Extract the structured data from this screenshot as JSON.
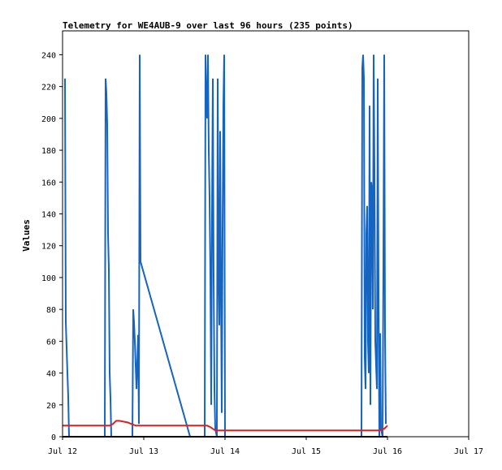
{
  "chart_data": {
    "type": "line",
    "title": "Telemetry for WE4AUB-9 over last 96 hours (235 points)",
    "xlabel": "",
    "ylabel": "Values",
    "x_ticks": [
      {
        "label": "Jul 12",
        "value": 0
      },
      {
        "label": "Jul 13",
        "value": 1
      },
      {
        "label": "Jul 14",
        "value": 2
      },
      {
        "label": "Jul 15",
        "value": 3
      },
      {
        "label": "Jul 16",
        "value": 4
      },
      {
        "label": "Jul 17",
        "value": 5
      }
    ],
    "xlim": [
      0,
      5
    ],
    "ylim": [
      0,
      255
    ],
    "y_ticks": [
      0,
      20,
      40,
      60,
      80,
      100,
      120,
      140,
      160,
      180,
      200,
      220,
      240
    ],
    "grid": false,
    "series": [
      {
        "color": "#1565c0",
        "points": [
          [
            0.03,
            225
          ],
          [
            0.04,
            72
          ],
          [
            0.05,
            56
          ],
          [
            0.06,
            40
          ],
          [
            0.07,
            25
          ],
          [
            0.08,
            0
          ],
          [
            0.52,
            0
          ],
          [
            0.53,
            225
          ],
          [
            0.54,
            216
          ],
          [
            0.55,
            196
          ],
          [
            0.56,
            128
          ],
          [
            0.57,
            105
          ],
          [
            0.58,
            40
          ],
          [
            0.59,
            24
          ],
          [
            0.6,
            0
          ],
          [
            0.86,
            0
          ],
          [
            0.87,
            80
          ],
          [
            0.88,
            72
          ],
          [
            0.89,
            60
          ],
          [
            0.9,
            45
          ],
          [
            0.91,
            30
          ],
          [
            0.93,
            64
          ],
          [
            0.94,
            8
          ],
          [
            0.95,
            240
          ],
          [
            0.96,
            110
          ],
          [
            1.57,
            0
          ],
          [
            1.75,
            0
          ],
          [
            1.76,
            240
          ],
          [
            1.77,
            210
          ],
          [
            1.78,
            200
          ],
          [
            1.79,
            240
          ],
          [
            1.8,
            180
          ],
          [
            1.81,
            150
          ],
          [
            1.82,
            100
          ],
          [
            1.83,
            20
          ],
          [
            1.84,
            140
          ],
          [
            1.85,
            225
          ],
          [
            1.86,
            100
          ],
          [
            1.87,
            30
          ],
          [
            1.88,
            5
          ],
          [
            1.9,
            0
          ],
          [
            1.91,
            225
          ],
          [
            1.92,
            105
          ],
          [
            1.93,
            70
          ],
          [
            1.94,
            192
          ],
          [
            1.95,
            95
          ],
          [
            1.96,
            15
          ],
          [
            1.97,
            128
          ],
          [
            1.98,
            208
          ],
          [
            1.99,
            240
          ],
          [
            2.0,
            0
          ],
          [
            3.68,
            0
          ],
          [
            3.69,
            232
          ],
          [
            3.7,
            240
          ],
          [
            3.71,
            225
          ],
          [
            3.72,
            50
          ],
          [
            3.73,
            30
          ],
          [
            3.74,
            128
          ],
          [
            3.75,
            145
          ],
          [
            3.76,
            60
          ],
          [
            3.77,
            40
          ],
          [
            3.78,
            208
          ],
          [
            3.79,
            20
          ],
          [
            3.8,
            160
          ],
          [
            3.81,
            155
          ],
          [
            3.82,
            80
          ],
          [
            3.83,
            240
          ],
          [
            3.84,
            168
          ],
          [
            3.85,
            60
          ],
          [
            3.86,
            45
          ],
          [
            3.87,
            30
          ],
          [
            3.88,
            225
          ],
          [
            3.89,
            90
          ],
          [
            3.9,
            0
          ],
          [
            3.91,
            65
          ],
          [
            3.92,
            5
          ],
          [
            3.94,
            0
          ],
          [
            3.95,
            112
          ],
          [
            3.96,
            240
          ],
          [
            3.97,
            65
          ],
          [
            3.98,
            8
          ]
        ]
      },
      {
        "color": "#e02020",
        "points": [
          [
            0.0,
            7
          ],
          [
            0.58,
            7
          ],
          [
            0.62,
            8
          ],
          [
            0.66,
            10
          ],
          [
            0.7,
            10
          ],
          [
            0.8,
            9
          ],
          [
            0.9,
            7
          ],
          [
            1.78,
            7
          ],
          [
            1.82,
            6
          ],
          [
            1.88,
            4
          ],
          [
            3.9,
            4
          ],
          [
            3.96,
            5
          ],
          [
            4.0,
            7
          ]
        ]
      },
      {
        "color": "#000000",
        "points": [
          [
            0.0,
            0
          ],
          [
            4.0,
            0
          ]
        ]
      }
    ]
  }
}
